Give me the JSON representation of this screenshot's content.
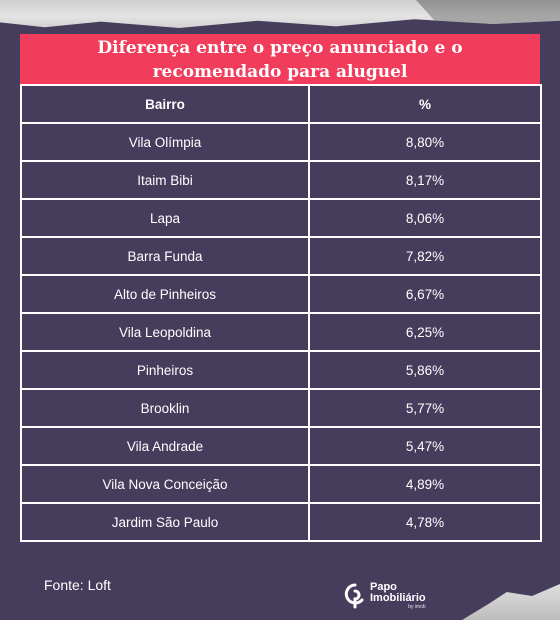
{
  "title": "Diferença entre o preço anunciado e o recomendado para aluguel",
  "table": {
    "headers": [
      "Bairro",
      "%"
    ],
    "rows": [
      {
        "bairro": "Vila Olímpia",
        "pct": "8,80%"
      },
      {
        "bairro": "Itaim Bibi",
        "pct": "8,17%"
      },
      {
        "bairro": "Lapa",
        "pct": "8,06%"
      },
      {
        "bairro": "Barra Funda",
        "pct": "7,82%"
      },
      {
        "bairro": "Alto de Pinheiros",
        "pct": "6,67%"
      },
      {
        "bairro": "Vila Leopoldina",
        "pct": "6,25%"
      },
      {
        "bairro": "Pinheiros",
        "pct": "5,86%"
      },
      {
        "bairro": "Brooklin",
        "pct": "5,77%"
      },
      {
        "bairro": "Vila Andrade",
        "pct": "5,47%"
      },
      {
        "bairro": "Vila Nova Conceição",
        "pct": "4,89%"
      },
      {
        "bairro": "Jardim São Paulo",
        "pct": "4,78%"
      }
    ]
  },
  "footer": {
    "source": "Fonte: Loft",
    "logo": {
      "line1": "Papo",
      "line2": "Imobiliário",
      "tagline": "by imob"
    }
  },
  "colors": {
    "background": "#463c5c",
    "title_bar": "#f23c5c",
    "text": "#ffffff"
  }
}
